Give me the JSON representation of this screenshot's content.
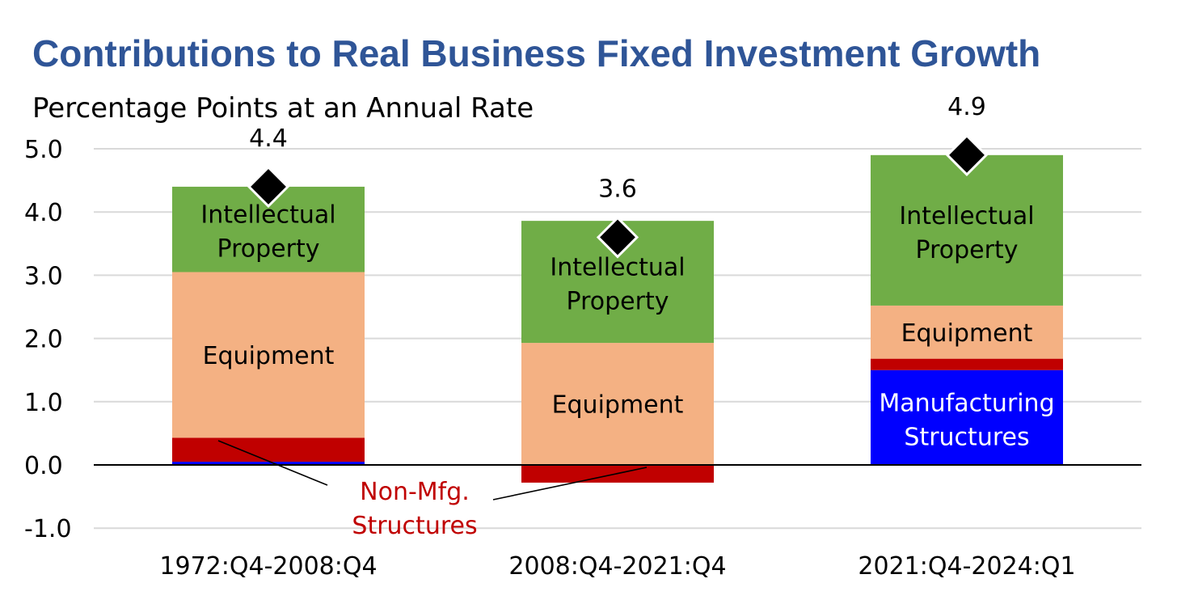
{
  "chart_data": {
    "type": "bar",
    "stacked": true,
    "title": "Contributions to Real Business Fixed Investment Growth",
    "subtitle": "Percentage Points at an Annual Rate",
    "categories": [
      "1972:Q4-2008:Q4",
      "2008:Q4-2021:Q4",
      "2021:Q4-2024:Q1"
    ],
    "ylim": [
      -1.0,
      5.0
    ],
    "yticks": [
      "5.0",
      "4.0",
      "3.0",
      "2.0",
      "1.0",
      "0.0",
      "-1.0"
    ],
    "ytick_values": [
      5,
      4,
      3,
      2,
      1,
      0,
      -1
    ],
    "grid": true,
    "series": [
      {
        "key": "mfg",
        "values": [
          0.05,
          0.0,
          1.5
        ],
        "color": "#0000ff"
      },
      {
        "key": "nonmfg",
        "values": [
          0.38,
          -0.28,
          0.18
        ],
        "color": "#c00000"
      },
      {
        "key": "equip",
        "values": [
          2.62,
          1.93,
          0.84
        ],
        "color": "#f4b183"
      },
      {
        "key": "ip",
        "values": [
          1.35,
          1.93,
          2.38
        ],
        "color": "#70ad47"
      }
    ],
    "totals": [
      4.4,
      3.6,
      4.9
    ],
    "total_labels": [
      "4.4",
      "3.6",
      "4.9"
    ],
    "bar_labels": {
      "ip_line1": "Intellectual",
      "ip_line2": "Property",
      "equipment": "Equipment",
      "mfg_line1": "Manufacturing",
      "mfg_line2": "Structures",
      "nonmfg_line1": "Non-Mfg.",
      "nonmfg_line2": "Structures"
    },
    "colors": {
      "title": "#2f5597",
      "nonmfg_label": "#c00000",
      "mfg_label": "#ffffff",
      "marker": "#000000"
    }
  }
}
